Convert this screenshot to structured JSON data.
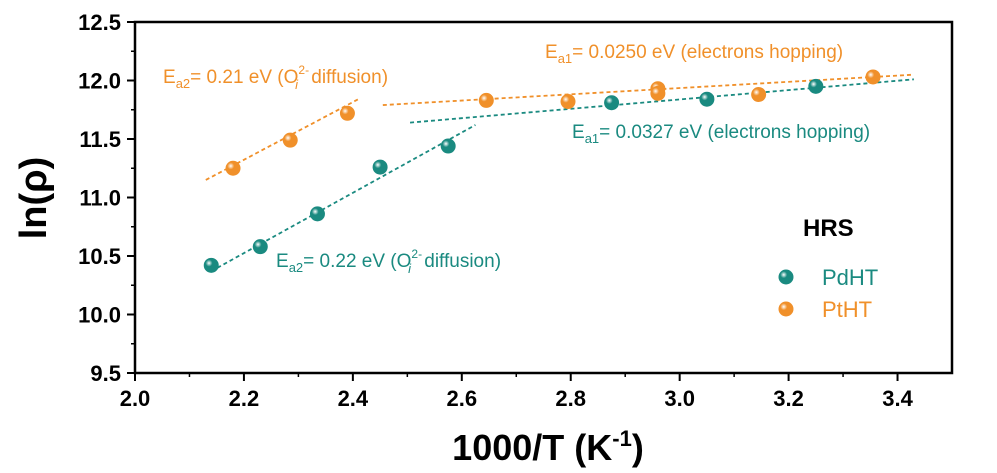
{
  "chart_data": {
    "type": "scatter",
    "title": "",
    "xlabel": {
      "main": "1000/T (K",
      "sup": "-1",
      "close": ")"
    },
    "ylabel": "ln(ρ)",
    "xlim": [
      2.0,
      3.5
    ],
    "ylim": [
      9.5,
      12.5
    ],
    "x_ticks": [
      2.0,
      2.2,
      2.4,
      2.6,
      2.8,
      3.0,
      3.2,
      3.4
    ],
    "x_tick_labels": [
      "2.0",
      "2.2",
      "2.4",
      "2.6",
      "2.8",
      "3.0",
      "3.2",
      "3.4"
    ],
    "y_ticks": [
      9.5,
      10.0,
      10.5,
      11.0,
      11.5,
      12.0,
      12.5
    ],
    "y_tick_labels": [
      "9.5",
      "10.0",
      "10.5",
      "11.0",
      "11.5",
      "12.0",
      "12.5"
    ],
    "grid": false,
    "legend": {
      "title": "HRS",
      "placement": "right",
      "entries": [
        "PdHT",
        "PtHT"
      ]
    },
    "series": [
      {
        "name": "PdHT",
        "color": "#1a8a80",
        "x": [
          2.14,
          2.23,
          2.335,
          2.45,
          2.575,
          2.875,
          3.05,
          3.25
        ],
        "y": [
          10.42,
          10.58,
          10.86,
          11.26,
          11.44,
          11.81,
          11.84,
          11.95
        ]
      },
      {
        "name": "PtHT",
        "color": "#f0902a",
        "x": [
          2.18,
          2.285,
          2.39,
          2.645,
          2.795,
          2.96,
          2.96,
          3.145,
          3.355
        ],
        "y": [
          11.25,
          11.49,
          11.72,
          11.83,
          11.82,
          11.93,
          11.89,
          11.88,
          12.03
        ]
      }
    ],
    "fit_lines": [
      {
        "series": "PtHT",
        "x": [
          2.13,
          2.41
        ],
        "y": [
          11.15,
          11.84
        ]
      },
      {
        "series": "PtHT",
        "x": [
          2.455,
          3.43
        ],
        "y": [
          11.79,
          12.05
        ]
      },
      {
        "series": "PdHT",
        "x": [
          2.14,
          2.625
        ],
        "y": [
          10.37,
          11.62
        ]
      },
      {
        "series": "PdHT",
        "x": [
          2.505,
          3.43
        ],
        "y": [
          11.64,
          12.01
        ]
      }
    ],
    "annotations": [
      {
        "series": "PtHT",
        "prefix": "E",
        "sub": "a2",
        "text": "= 0.21 eV (O",
        "sup2": "2-",
        "sub2": "i",
        "tail": " diffusion)"
      },
      {
        "series": "PtHT",
        "prefix": "E",
        "sub": "a1",
        "text": "= 0.0250 eV (electrons hopping)"
      },
      {
        "series": "PdHT",
        "prefix": "E",
        "sub": "a1",
        "text": "= 0.0327 eV (electrons hopping)"
      },
      {
        "series": "PdHT",
        "prefix": "E",
        "sub": "a2",
        "text": "= 0.22 eV (O",
        "sup2": "2-",
        "sub2": "i",
        "tail": " diffusion)"
      }
    ]
  }
}
